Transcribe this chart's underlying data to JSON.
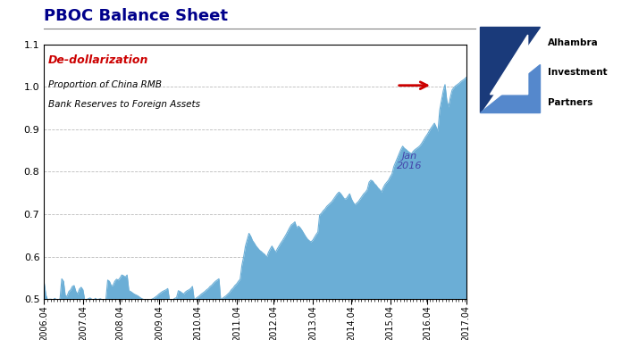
{
  "title": "PBOC Balance Sheet",
  "annotation_red": "De-dollarization",
  "annotation_italic1": "Proportion of China RMB",
  "annotation_italic2": "Bank Reserves to Foreign Assets",
  "annotation_jan": "Jan\n2016",
  "ylim": [
    0.5,
    1.1
  ],
  "yticks": [
    0.5,
    0.6,
    0.7,
    0.8,
    0.9,
    1.0,
    1.1
  ],
  "fill_color": "#6baed6",
  "background_color": "#ffffff",
  "grid_color": "#aaaaaa",
  "title_color": "#00008B",
  "arrow_color": "#cc0000",
  "jan2016_color": "#4444aa",
  "x_labels": [
    "2006.04",
    "2007.04",
    "2008.04",
    "2009.04",
    "2010.04",
    "2011.04",
    "2012.04",
    "2013.04",
    "2014.04",
    "2015.04",
    "2016.04",
    "2017.04"
  ],
  "series": [
    0.54,
    0.51,
    0.498,
    0.5,
    0.5,
    0.498,
    0.502,
    0.499,
    0.498,
    0.501,
    0.548,
    0.542,
    0.508,
    0.507,
    0.518,
    0.522,
    0.53,
    0.532,
    0.518,
    0.512,
    0.524,
    0.528,
    0.522,
    0.498,
    0.499,
    0.501,
    0.503,
    0.5,
    0.497,
    0.502,
    0.499,
    0.5,
    0.501,
    0.498,
    0.499,
    0.5,
    0.545,
    0.542,
    0.532,
    0.532,
    0.542,
    0.547,
    0.545,
    0.55,
    0.557,
    0.555,
    0.552,
    0.557,
    0.52,
    0.518,
    0.515,
    0.512,
    0.51,
    0.508,
    0.505,
    0.502,
    0.5,
    0.498,
    0.497,
    0.495,
    0.497,
    0.5,
    0.502,
    0.505,
    0.508,
    0.512,
    0.515,
    0.518,
    0.52,
    0.522,
    0.525,
    0.498,
    0.497,
    0.499,
    0.502,
    0.504,
    0.52,
    0.518,
    0.515,
    0.512,
    0.517,
    0.52,
    0.522,
    0.525,
    0.53,
    0.498,
    0.502,
    0.505,
    0.508,
    0.512,
    0.515,
    0.518,
    0.522,
    0.525,
    0.53,
    0.533,
    0.538,
    0.542,
    0.545,
    0.548,
    0.498,
    0.502,
    0.505,
    0.508,
    0.512,
    0.516,
    0.522,
    0.526,
    0.532,
    0.536,
    0.542,
    0.547,
    0.58,
    0.6,
    0.625,
    0.64,
    0.655,
    0.648,
    0.638,
    0.632,
    0.625,
    0.62,
    0.615,
    0.612,
    0.608,
    0.605,
    0.598,
    0.61,
    0.618,
    0.625,
    0.618,
    0.61,
    0.618,
    0.625,
    0.632,
    0.638,
    0.645,
    0.652,
    0.66,
    0.668,
    0.675,
    0.678,
    0.682,
    0.668,
    0.672,
    0.668,
    0.662,
    0.655,
    0.648,
    0.642,
    0.638,
    0.635,
    0.638,
    0.645,
    0.652,
    0.658,
    0.698,
    0.702,
    0.708,
    0.712,
    0.718,
    0.722,
    0.726,
    0.73,
    0.736,
    0.742,
    0.748,
    0.752,
    0.748,
    0.742,
    0.736,
    0.736,
    0.742,
    0.748,
    0.736,
    0.728,
    0.722,
    0.726,
    0.73,
    0.736,
    0.742,
    0.748,
    0.752,
    0.758,
    0.775,
    0.78,
    0.778,
    0.772,
    0.768,
    0.762,
    0.758,
    0.752,
    0.762,
    0.77,
    0.775,
    0.78,
    0.788,
    0.795,
    0.812,
    0.822,
    0.832,
    0.842,
    0.852,
    0.86,
    0.855,
    0.852,
    0.848,
    0.845,
    0.842,
    0.848,
    0.852,
    0.855,
    0.858,
    0.862,
    0.868,
    0.875,
    0.882,
    0.888,
    0.895,
    0.902,
    0.908,
    0.914,
    0.905,
    0.895,
    0.945,
    0.968,
    0.99,
    1.005,
    0.968,
    0.952,
    0.975,
    0.992,
    0.998,
    1.002,
    1.005,
    1.008,
    1.012,
    1.015,
    1.018,
    1.022
  ]
}
